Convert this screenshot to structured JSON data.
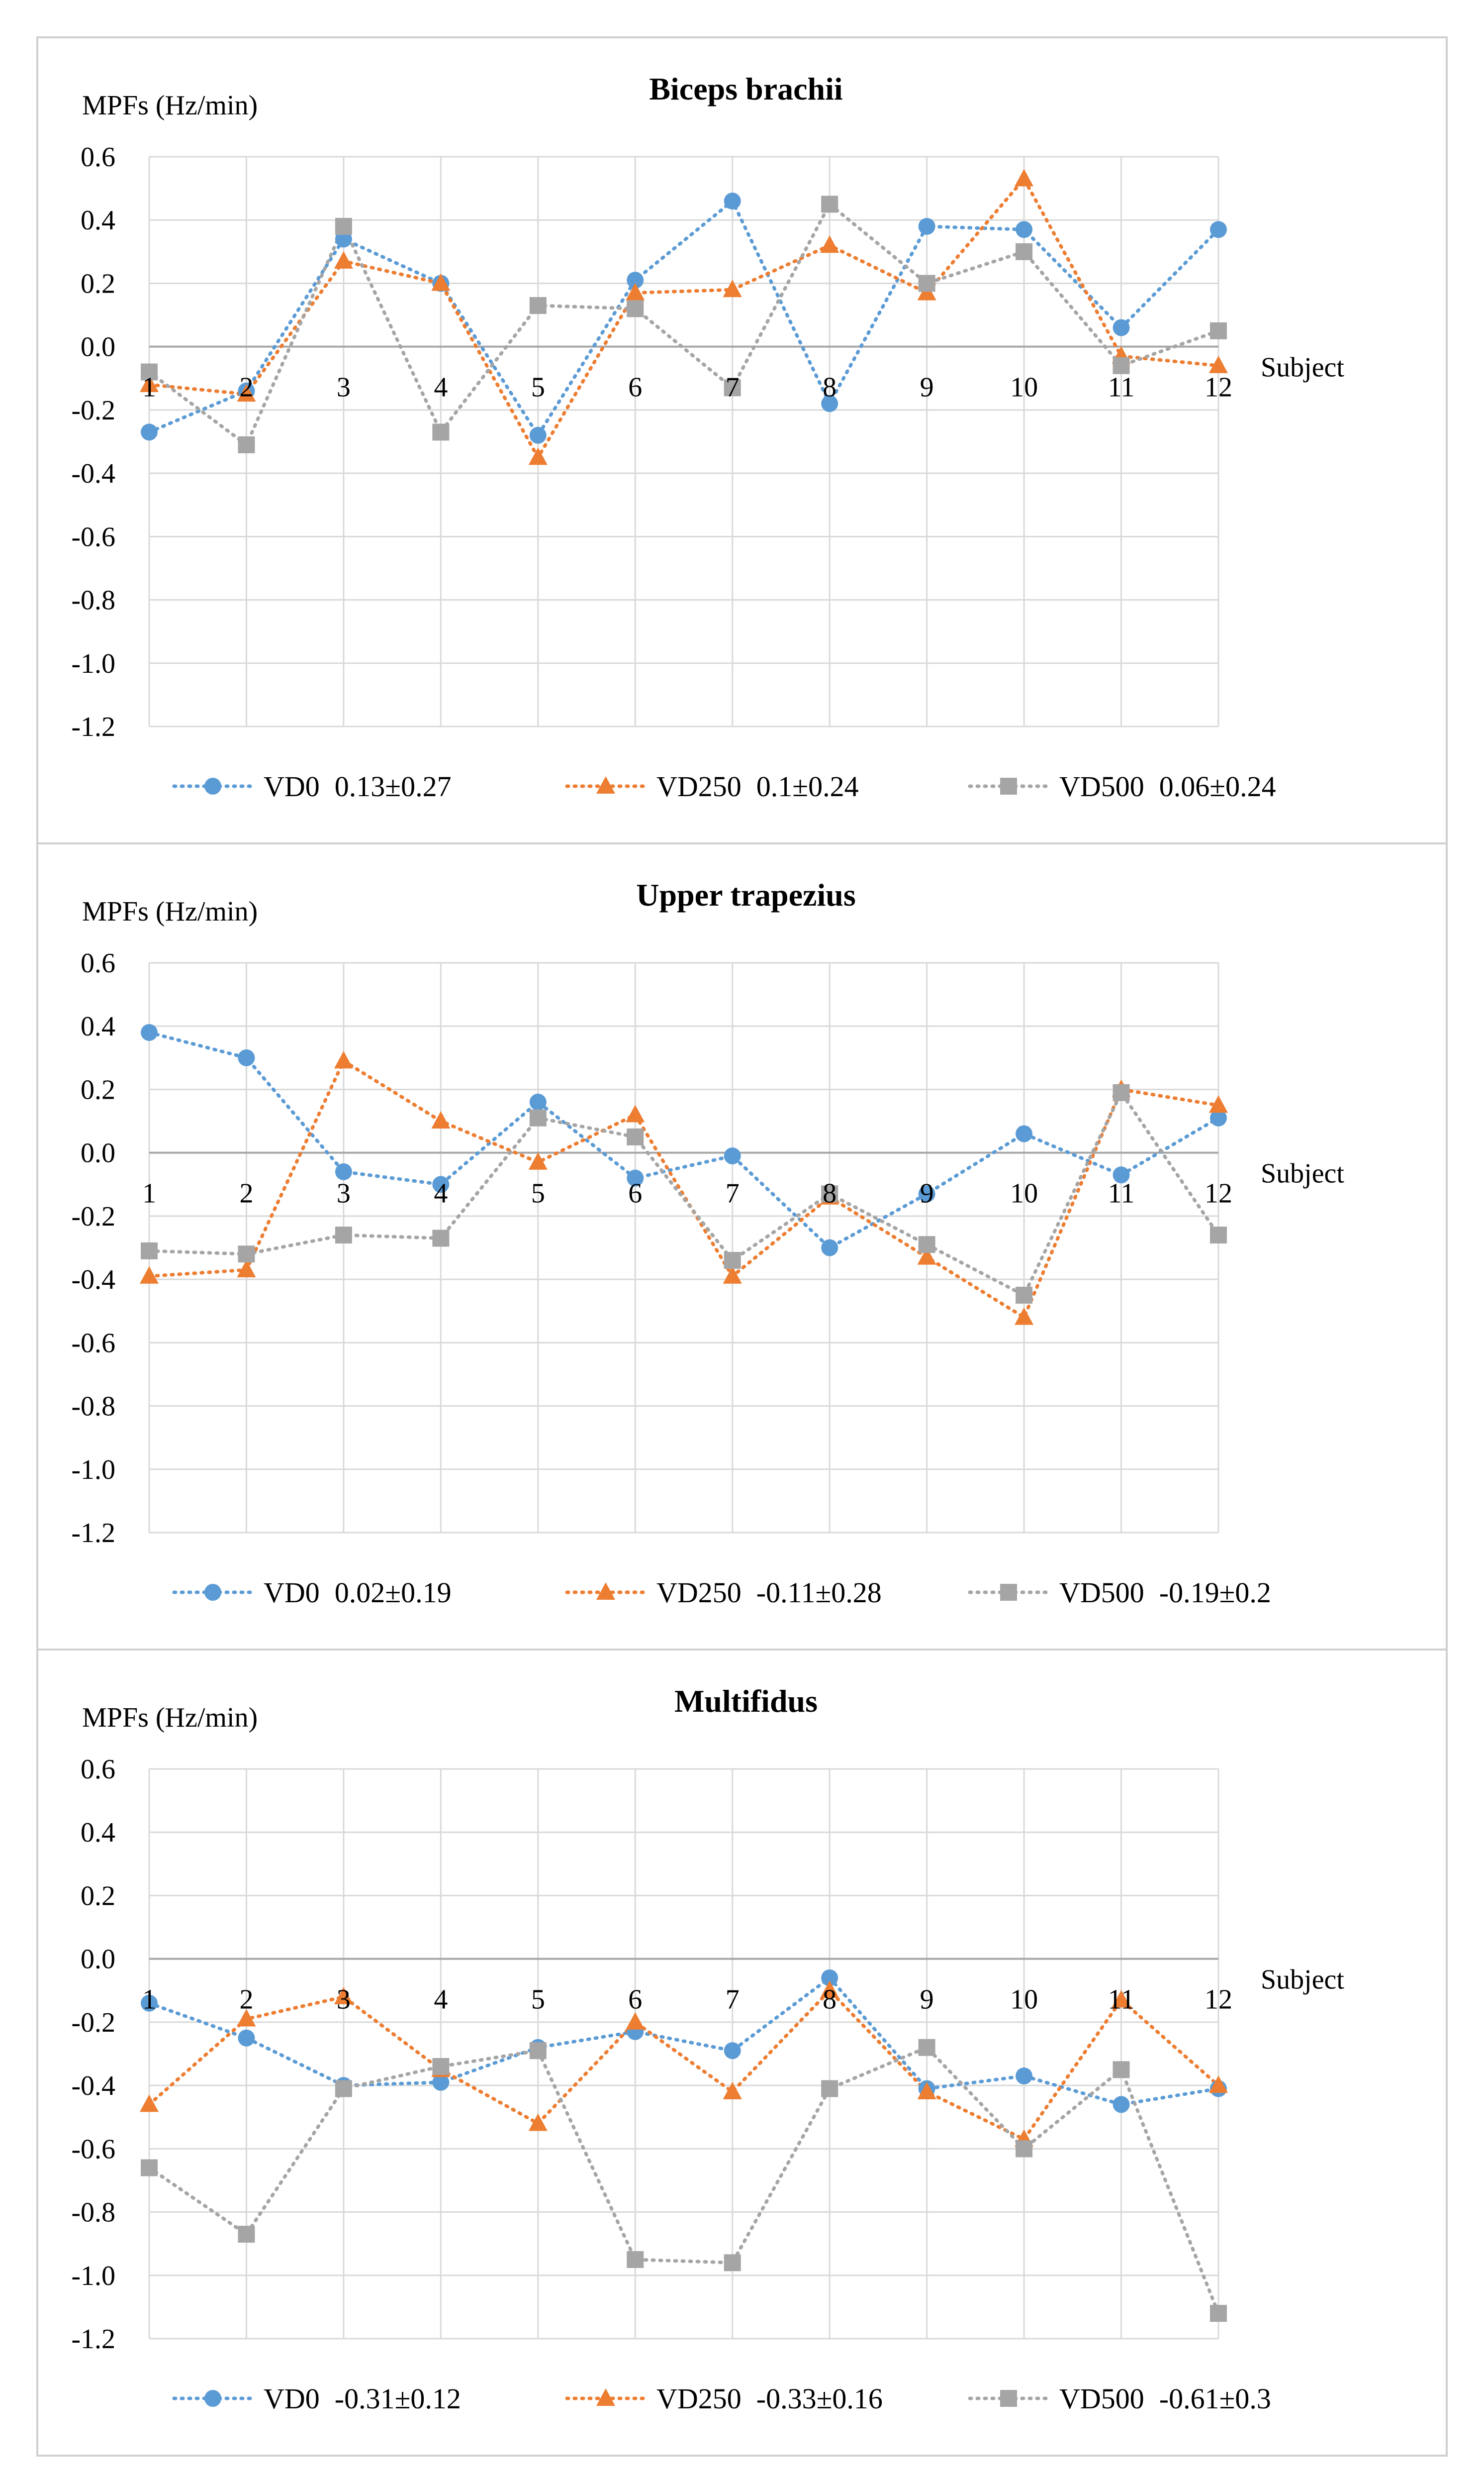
{
  "colors": {
    "VD0": "#5b9bd5",
    "VD250": "#ed7d31",
    "VD500": "#a5a5a5"
  },
  "chart_data": [
    {
      "type": "line",
      "title": "Biceps brachii",
      "ylabel": "MPFs (Hz/min)",
      "xlabel": "Subject",
      "categories": [
        "1",
        "2",
        "3",
        "4",
        "5",
        "6",
        "7",
        "8",
        "9",
        "10",
        "11",
        "12"
      ],
      "yticks": [
        "0.6",
        "0.4",
        "0.2",
        "0.0",
        "-0.2",
        "-0.4",
        "-0.6",
        "-0.8",
        "-1.0",
        "-1.2"
      ],
      "ylim": [
        -1.2,
        0.6
      ],
      "series": [
        {
          "name": "VD0",
          "stat": "0.13±0.27",
          "marker": "circle",
          "values": [
            -0.27,
            -0.14,
            0.34,
            0.2,
            -0.28,
            0.21,
            0.46,
            -0.18,
            0.38,
            0.37,
            0.06,
            0.37
          ]
        },
        {
          "name": "VD250",
          "stat": "0.1±0.24",
          "marker": "triangle",
          "values": [
            -0.12,
            -0.15,
            0.27,
            0.2,
            -0.35,
            0.17,
            0.18,
            0.32,
            0.17,
            0.53,
            -0.03,
            -0.06
          ]
        },
        {
          "name": "VD500",
          "stat": "0.06±0.24",
          "marker": "square",
          "values": [
            -0.08,
            -0.31,
            0.38,
            -0.27,
            0.13,
            0.12,
            -0.13,
            0.45,
            0.2,
            0.3,
            -0.06,
            0.05
          ]
        }
      ]
    },
    {
      "type": "line",
      "title": "Upper trapezius",
      "ylabel": "MPFs (Hz/min)",
      "xlabel": "Subject",
      "categories": [
        "1",
        "2",
        "3",
        "4",
        "5",
        "6",
        "7",
        "8",
        "9",
        "10",
        "11",
        "12"
      ],
      "yticks": [
        "0.6",
        "0.4",
        "0.2",
        "0.0",
        "-0.2",
        "-0.4",
        "-0.6",
        "-0.8",
        "-1.0",
        "-1.2"
      ],
      "ylim": [
        -1.2,
        0.6
      ],
      "series": [
        {
          "name": "VD0",
          "stat": "0.02±0.19",
          "marker": "circle",
          "values": [
            0.38,
            0.3,
            -0.06,
            -0.1,
            0.16,
            -0.08,
            -0.01,
            -0.3,
            -0.13,
            0.06,
            -0.07,
            0.11
          ]
        },
        {
          "name": "VD250",
          "stat": "-0.11±0.28",
          "marker": "triangle",
          "values": [
            -0.39,
            -0.37,
            0.29,
            0.1,
            -0.03,
            0.12,
            -0.39,
            -0.14,
            -0.33,
            -0.52,
            0.2,
            0.15
          ]
        },
        {
          "name": "VD500",
          "stat": "-0.19±0.2",
          "marker": "square",
          "values": [
            -0.31,
            -0.32,
            -0.26,
            -0.27,
            0.11,
            0.05,
            -0.34,
            -0.13,
            -0.29,
            -0.45,
            0.19,
            -0.26
          ]
        }
      ]
    },
    {
      "type": "line",
      "title": "Multifidus",
      "ylabel": "MPFs (Hz/min)",
      "xlabel": "Subject",
      "categories": [
        "1",
        "2",
        "3",
        "4",
        "5",
        "6",
        "7",
        "8",
        "9",
        "10",
        "11",
        "12"
      ],
      "yticks": [
        "0.6",
        "0.4",
        "0.2",
        "0.0",
        "-0.2",
        "-0.4",
        "-0.6",
        "-0.8",
        "-1.0",
        "-1.2"
      ],
      "ylim": [
        -1.2,
        0.6
      ],
      "series": [
        {
          "name": "VD0",
          "stat": "-0.31±0.12",
          "marker": "circle",
          "values": [
            -0.14,
            -0.25,
            -0.4,
            -0.39,
            -0.28,
            -0.23,
            -0.29,
            -0.06,
            -0.41,
            -0.37,
            -0.46,
            -0.41
          ]
        },
        {
          "name": "VD250",
          "stat": "-0.33±0.16",
          "marker": "triangle",
          "values": [
            -0.46,
            -0.19,
            -0.12,
            -0.35,
            -0.52,
            -0.2,
            -0.42,
            -0.1,
            -0.42,
            -0.57,
            -0.13,
            -0.4
          ]
        },
        {
          "name": "VD500",
          "stat": "-0.61±0.3",
          "marker": "square",
          "values": [
            -0.66,
            -0.87,
            -0.41,
            -0.34,
            -0.29,
            -0.95,
            -0.96,
            -0.41,
            -0.28,
            -0.6,
            -0.35,
            -1.12
          ]
        }
      ]
    }
  ]
}
